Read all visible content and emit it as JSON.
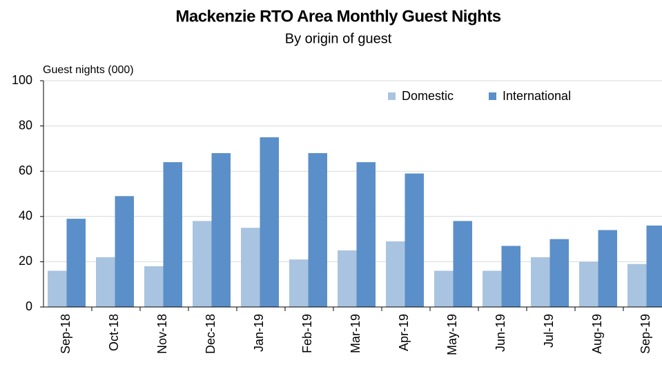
{
  "chart_data": {
    "type": "bar",
    "title": "Mackenzie RTO Area Monthly Guest Nights",
    "subtitle": "By origin  of guest",
    "y_label": "Guest nights (000)",
    "categories": [
      "Sep-18",
      "Oct-18",
      "Nov-18",
      "Dec-18",
      "Jan-19",
      "Feb-19",
      "Mar-19",
      "Apr-19",
      "May-19",
      "Jun-19",
      "Jul-19",
      "Aug-19",
      "Sep-19"
    ],
    "series": [
      {
        "name": "Domestic",
        "color": "#a9c4e0",
        "values": [
          16,
          22,
          18,
          38,
          35,
          21,
          25,
          29,
          16,
          16,
          22,
          20,
          19
        ]
      },
      {
        "name": "International",
        "color": "#5b8fc9",
        "values": [
          39,
          49,
          64,
          68,
          75,
          68,
          64,
          59,
          38,
          27,
          30,
          34,
          36
        ]
      }
    ],
    "ylim": [
      0,
      100
    ],
    "yticks": [
      0,
      20,
      40,
      60,
      80,
      100
    ],
    "grid": true,
    "legend": "top-right"
  }
}
